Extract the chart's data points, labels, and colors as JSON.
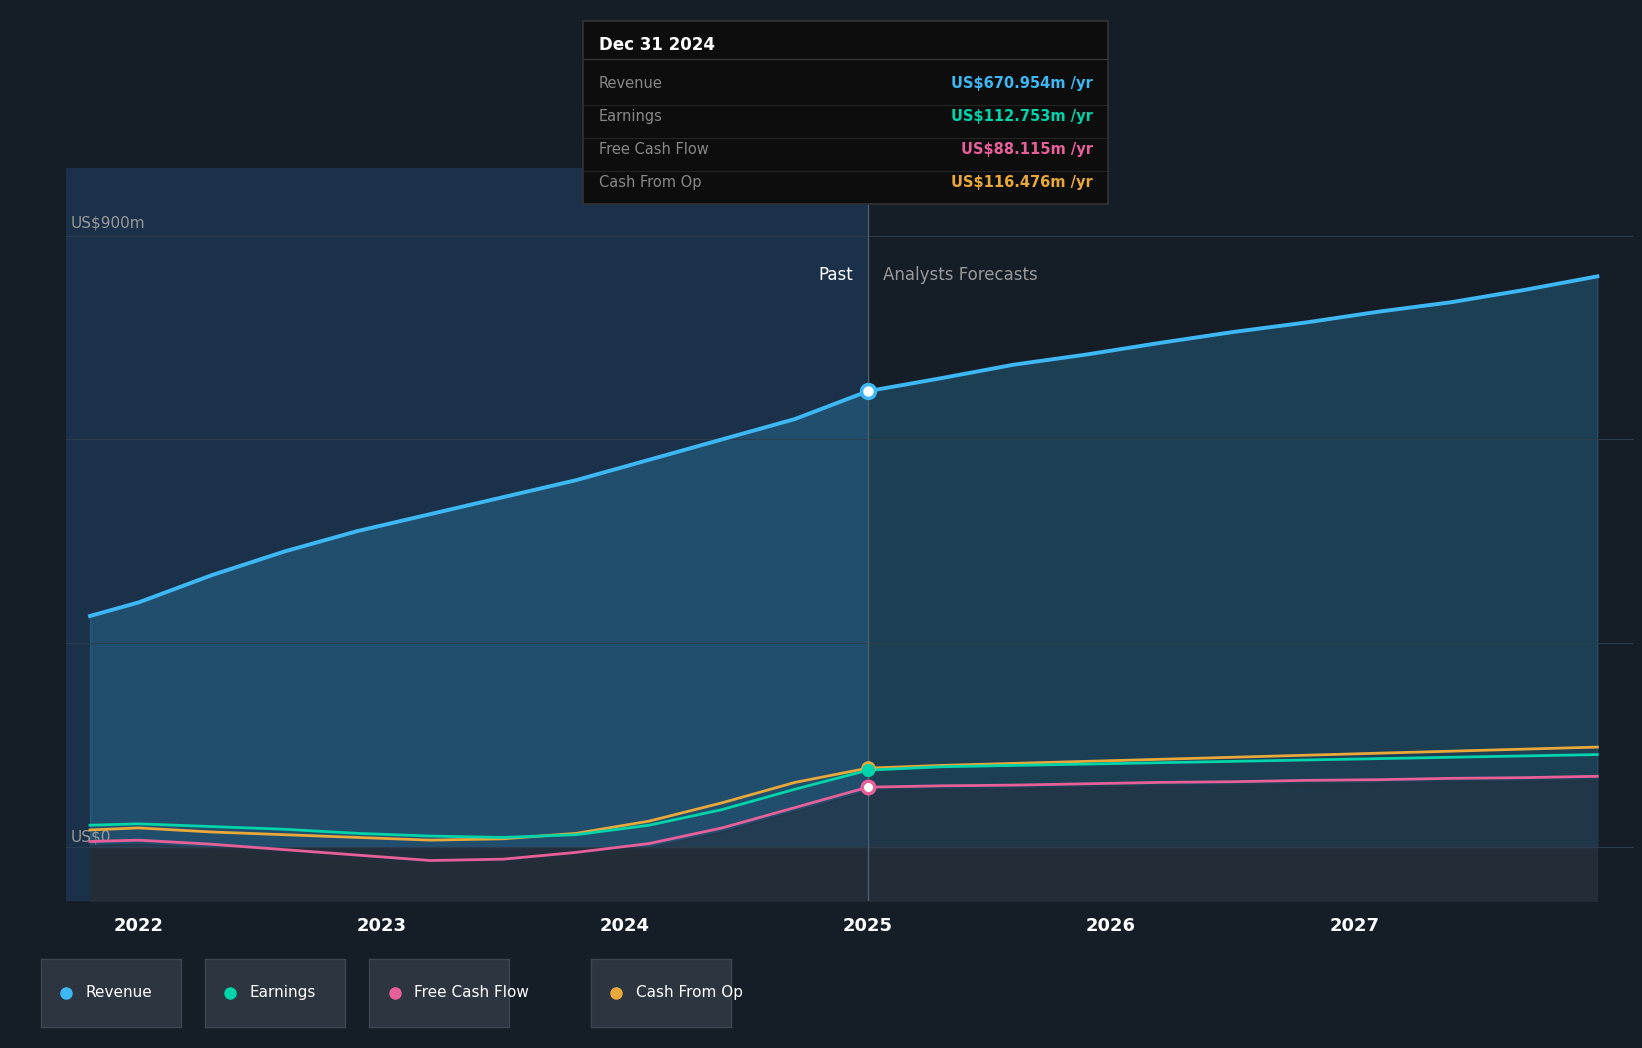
{
  "bg_color": "#151d27",
  "past_bg_color": "#1b3149",
  "axis_label_color": "#999999",
  "grid_color": "#2d3d4d",
  "zero_fill_color": "#1e2a35",
  "x_years": [
    2021.8,
    2022.0,
    2022.3,
    2022.6,
    2022.9,
    2023.2,
    2023.5,
    2023.8,
    2024.1,
    2024.4,
    2024.7,
    2025.0,
    2025.3,
    2025.6,
    2025.9,
    2026.2,
    2026.5,
    2026.8,
    2027.1,
    2027.4,
    2027.7,
    2028.0
  ],
  "revenue": [
    340,
    360,
    400,
    435,
    465,
    490,
    515,
    540,
    570,
    600,
    630,
    671,
    690,
    710,
    725,
    742,
    758,
    772,
    788,
    802,
    820,
    840
  ],
  "earnings": [
    32,
    34,
    30,
    26,
    20,
    16,
    14,
    18,
    32,
    55,
    85,
    113,
    118,
    120,
    122,
    124,
    126,
    128,
    130,
    132,
    134,
    136
  ],
  "free_cash_flow": [
    8,
    10,
    4,
    -4,
    -12,
    -20,
    -18,
    -8,
    5,
    28,
    58,
    88,
    90,
    91,
    93,
    95,
    96,
    98,
    99,
    101,
    102,
    104
  ],
  "cash_from_op": [
    25,
    28,
    22,
    18,
    14,
    10,
    12,
    20,
    38,
    65,
    95,
    116,
    120,
    123,
    126,
    129,
    132,
    135,
    138,
    141,
    144,
    147
  ],
  "revenue_color": "#3db8f5",
  "earnings_color": "#00d4aa",
  "fcf_color": "#e8609a",
  "cfo_color": "#e8a83a",
  "divide_x": 2025.0,
  "past_label": "Past",
  "forecast_label": "Analysts Forecasts",
  "y_axis_label": "US$900m",
  "y_zero_label": "US$0",
  "ylim": [
    -80,
    1000
  ],
  "y_top": 900,
  "x_ticks": [
    2022,
    2023,
    2024,
    2025,
    2026,
    2027
  ],
  "x_lim": [
    2021.7,
    2028.15
  ],
  "tooltip_title": "Dec 31 2024",
  "tooltip_bg": "#0d0d0d",
  "tooltip_border": "#333333",
  "tooltip_items": [
    {
      "label": "Revenue",
      "value": "US$670.954m /yr",
      "color": "#3db8f5"
    },
    {
      "label": "Earnings",
      "value": "US$112.753m /yr",
      "color": "#00d4aa"
    },
    {
      "label": "Free Cash Flow",
      "value": "US$88.115m /yr",
      "color": "#e8609a"
    },
    {
      "label": "Cash From Op",
      "value": "US$116.476m /yr",
      "color": "#e8a83a"
    }
  ],
  "legend_items": [
    {
      "label": "Revenue",
      "color": "#3db8f5"
    },
    {
      "label": "Earnings",
      "color": "#00d4aa"
    },
    {
      "label": "Free Cash Flow",
      "color": "#e8609a"
    },
    {
      "label": "Cash From Op",
      "color": "#e8a83a"
    }
  ]
}
